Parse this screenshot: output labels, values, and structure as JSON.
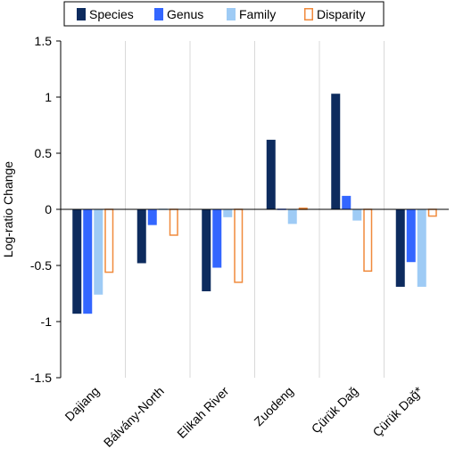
{
  "chart_data": {
    "type": "bar",
    "title": "",
    "xlabel": "",
    "ylabel": "Log-ratio Change",
    "ylim": [
      -1.5,
      1.5
    ],
    "yticks": [
      1.5,
      1,
      0.5,
      0,
      -0.5,
      -1,
      -1.5
    ],
    "ytick_labels": [
      "1.5",
      "1",
      "0.5",
      "0",
      "-0.5",
      "-1",
      "-1.5"
    ],
    "categories": [
      "Dajiang",
      "Bálvány-North",
      "Elikah River",
      "Zuodeng",
      "Çürük Dağ",
      "Çürük Dağ*"
    ],
    "legend_position": "top",
    "series": [
      {
        "name": "Species",
        "color": "#0d2b5e",
        "style": "filled",
        "values": [
          -0.93,
          -0.48,
          -0.73,
          0.62,
          1.03,
          -0.69
        ]
      },
      {
        "name": "Genus",
        "color": "#3366ff",
        "style": "filled",
        "values": [
          -0.93,
          -0.14,
          -0.52,
          0.0,
          0.12,
          -0.47
        ]
      },
      {
        "name": "Family",
        "color": "#9ecbf5",
        "style": "filled",
        "values": [
          -0.76,
          0.0,
          -0.07,
          -0.13,
          -0.1,
          -0.69
        ]
      },
      {
        "name": "Disparity",
        "color": "#f08a3c",
        "style": "outline",
        "values": [
          -0.56,
          -0.23,
          -0.65,
          0.01,
          -0.55,
          -0.06
        ]
      }
    ]
  }
}
